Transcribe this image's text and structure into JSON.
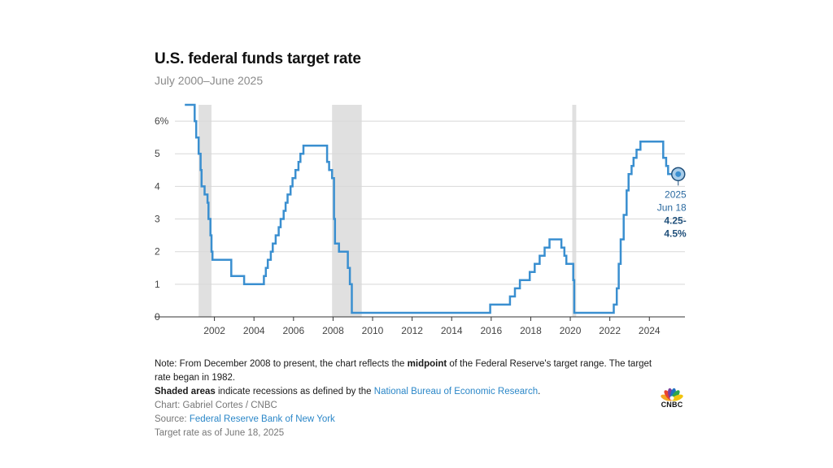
{
  "header": {
    "title": "U.S. federal funds target rate",
    "subtitle": "July 2000–June 2025"
  },
  "chart_data": {
    "type": "line",
    "title": "U.S. federal funds target rate",
    "subtitle": "July 2000–June 2025",
    "xlabel": "",
    "ylabel": "",
    "xlim": [
      2000.0,
      2025.8
    ],
    "ylim": [
      0,
      6.5
    ],
    "x_ticks": [
      2002,
      2004,
      2006,
      2008,
      2010,
      2012,
      2014,
      2016,
      2018,
      2020,
      2022,
      2024
    ],
    "x_tick_labels": [
      "2002",
      "2004",
      "2006",
      "2008",
      "2010",
      "2012",
      "2014",
      "2016",
      "2018",
      "2020",
      "2022",
      "2024"
    ],
    "y_ticks": [
      0,
      1,
      2,
      3,
      4,
      5,
      6
    ],
    "y_tick_labels": [
      "0",
      "1",
      "2",
      "3",
      "4",
      "5",
      "6%"
    ],
    "grid": "horizontal",
    "line_color": "#3a8fd0",
    "recession_color": "#e0e0e0",
    "recessions": [
      {
        "start": 2001.2,
        "end": 2001.85
      },
      {
        "start": 2007.95,
        "end": 2009.45
      },
      {
        "start": 2020.1,
        "end": 2020.3
      }
    ],
    "series": [
      {
        "points": [
          [
            2000.5,
            6.5
          ],
          [
            2001.0,
            6.5
          ],
          [
            2001.0,
            6.0
          ],
          [
            2001.08,
            6.0
          ],
          [
            2001.08,
            5.5
          ],
          [
            2001.2,
            5.5
          ],
          [
            2001.2,
            5.0
          ],
          [
            2001.3,
            5.0
          ],
          [
            2001.3,
            4.5
          ],
          [
            2001.35,
            4.5
          ],
          [
            2001.35,
            4.0
          ],
          [
            2001.5,
            4.0
          ],
          [
            2001.5,
            3.75
          ],
          [
            2001.65,
            3.75
          ],
          [
            2001.65,
            3.5
          ],
          [
            2001.7,
            3.5
          ],
          [
            2001.7,
            3.0
          ],
          [
            2001.8,
            3.0
          ],
          [
            2001.8,
            2.5
          ],
          [
            2001.85,
            2.5
          ],
          [
            2001.85,
            2.0
          ],
          [
            2001.9,
            2.0
          ],
          [
            2001.9,
            1.75
          ],
          [
            2002.85,
            1.75
          ],
          [
            2002.85,
            1.25
          ],
          [
            2003.5,
            1.25
          ],
          [
            2003.5,
            1.0
          ],
          [
            2004.5,
            1.0
          ],
          [
            2004.5,
            1.25
          ],
          [
            2004.6,
            1.25
          ],
          [
            2004.6,
            1.5
          ],
          [
            2004.7,
            1.5
          ],
          [
            2004.7,
            1.75
          ],
          [
            2004.85,
            1.75
          ],
          [
            2004.85,
            2.0
          ],
          [
            2004.95,
            2.0
          ],
          [
            2004.95,
            2.25
          ],
          [
            2005.1,
            2.25
          ],
          [
            2005.1,
            2.5
          ],
          [
            2005.25,
            2.5
          ],
          [
            2005.25,
            2.75
          ],
          [
            2005.35,
            2.75
          ],
          [
            2005.35,
            3.0
          ],
          [
            2005.5,
            3.0
          ],
          [
            2005.5,
            3.25
          ],
          [
            2005.6,
            3.25
          ],
          [
            2005.6,
            3.5
          ],
          [
            2005.7,
            3.5
          ],
          [
            2005.7,
            3.75
          ],
          [
            2005.85,
            3.75
          ],
          [
            2005.85,
            4.0
          ],
          [
            2005.95,
            4.0
          ],
          [
            2005.95,
            4.25
          ],
          [
            2006.1,
            4.25
          ],
          [
            2006.1,
            4.5
          ],
          [
            2006.25,
            4.5
          ],
          [
            2006.25,
            4.75
          ],
          [
            2006.35,
            4.75
          ],
          [
            2006.35,
            5.0
          ],
          [
            2006.5,
            5.0
          ],
          [
            2006.5,
            5.25
          ],
          [
            2007.7,
            5.25
          ],
          [
            2007.7,
            4.75
          ],
          [
            2007.8,
            4.75
          ],
          [
            2007.8,
            4.5
          ],
          [
            2007.95,
            4.5
          ],
          [
            2007.95,
            4.25
          ],
          [
            2008.05,
            4.25
          ],
          [
            2008.05,
            3.0
          ],
          [
            2008.1,
            3.0
          ],
          [
            2008.1,
            2.25
          ],
          [
            2008.3,
            2.25
          ],
          [
            2008.3,
            2.0
          ],
          [
            2008.75,
            2.0
          ],
          [
            2008.75,
            1.5
          ],
          [
            2008.85,
            1.5
          ],
          [
            2008.85,
            1.0
          ],
          [
            2008.95,
            1.0
          ],
          [
            2008.95,
            0.125
          ],
          [
            2015.95,
            0.125
          ],
          [
            2015.95,
            0.375
          ],
          [
            2016.95,
            0.375
          ],
          [
            2016.95,
            0.625
          ],
          [
            2017.2,
            0.625
          ],
          [
            2017.2,
            0.875
          ],
          [
            2017.45,
            0.875
          ],
          [
            2017.45,
            1.125
          ],
          [
            2017.95,
            1.125
          ],
          [
            2017.95,
            1.375
          ],
          [
            2018.2,
            1.375
          ],
          [
            2018.2,
            1.625
          ],
          [
            2018.45,
            1.625
          ],
          [
            2018.45,
            1.875
          ],
          [
            2018.7,
            1.875
          ],
          [
            2018.7,
            2.125
          ],
          [
            2018.95,
            2.125
          ],
          [
            2018.95,
            2.375
          ],
          [
            2019.55,
            2.375
          ],
          [
            2019.55,
            2.125
          ],
          [
            2019.7,
            2.125
          ],
          [
            2019.7,
            1.875
          ],
          [
            2019.8,
            1.875
          ],
          [
            2019.8,
            1.625
          ],
          [
            2020.15,
            1.625
          ],
          [
            2020.15,
            1.125
          ],
          [
            2020.2,
            1.125
          ],
          [
            2020.2,
            0.125
          ],
          [
            2022.2,
            0.125
          ],
          [
            2022.2,
            0.375
          ],
          [
            2022.35,
            0.375
          ],
          [
            2022.35,
            0.875
          ],
          [
            2022.45,
            0.875
          ],
          [
            2022.45,
            1.625
          ],
          [
            2022.55,
            1.625
          ],
          [
            2022.55,
            2.375
          ],
          [
            2022.7,
            2.375
          ],
          [
            2022.7,
            3.125
          ],
          [
            2022.85,
            3.125
          ],
          [
            2022.85,
            3.875
          ],
          [
            2022.95,
            3.875
          ],
          [
            2022.95,
            4.375
          ],
          [
            2023.1,
            4.375
          ],
          [
            2023.1,
            4.625
          ],
          [
            2023.2,
            4.625
          ],
          [
            2023.2,
            4.875
          ],
          [
            2023.35,
            4.875
          ],
          [
            2023.35,
            5.125
          ],
          [
            2023.55,
            5.125
          ],
          [
            2023.55,
            5.375
          ],
          [
            2024.7,
            5.375
          ],
          [
            2024.7,
            4.875
          ],
          [
            2024.85,
            4.875
          ],
          [
            2024.85,
            4.625
          ],
          [
            2024.95,
            4.625
          ],
          [
            2024.95,
            4.375
          ],
          [
            2025.46,
            4.375
          ]
        ]
      }
    ],
    "annotation": {
      "x": 2025.46,
      "y": 4.375,
      "lines": [
        "2025",
        "Jun 18",
        "4.25-",
        "4.5%"
      ]
    }
  },
  "notes": {
    "note_prefix": "Note: From December 2008 to present, the chart reflects the ",
    "note_bold": "midpoint",
    "note_suffix": " of the Federal Reserve's target range. The target rate began in 1982.",
    "shaded_bold": "Shaded areas",
    "shaded_text": " indicate recessions as defined by the ",
    "shaded_link": "National Bureau of Economic Research",
    "shaded_end": ".",
    "chart_credit": "Chart: Gabriel Cortes / CNBC",
    "source_prefix": "Source: ",
    "source_link": "Federal Reserve Bank of New York",
    "target_date": "Target rate as of June 18, 2025"
  },
  "logo": {
    "text": "CNBC",
    "icon": "cnbc-peacock-icon",
    "colors": [
      "#f5a623",
      "#e8432d",
      "#7b3f9e",
      "#1f70c1",
      "#2ea44f",
      "#f1c40f"
    ]
  }
}
